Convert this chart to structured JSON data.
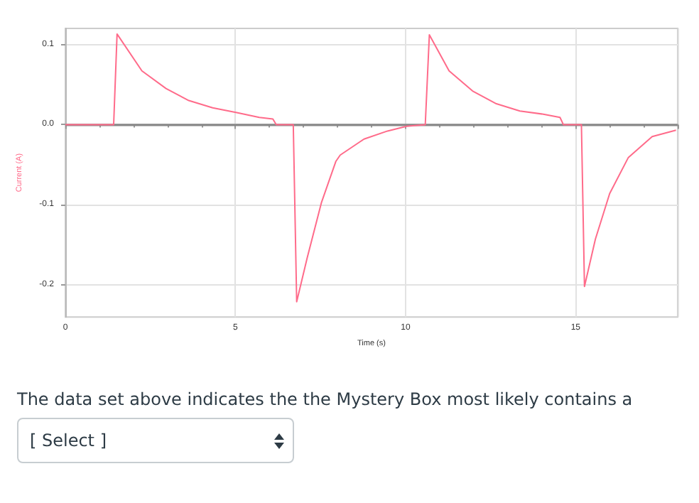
{
  "chart_data": {
    "type": "line",
    "xlabel": "Time (s)",
    "ylabel": "Current (A)",
    "x": [
      0,
      1.42,
      1.52,
      2.25,
      2.96,
      3.63,
      4.33,
      5.04,
      5.7,
      6.1,
      6.2,
      6.7,
      6.8,
      7.11,
      7.53,
      7.95,
      8.08,
      8.78,
      9.47,
      10.03,
      10.58,
      10.7,
      11.28,
      11.97,
      12.67,
      13.36,
      14.05,
      14.54,
      14.64,
      15.17,
      15.26,
      15.58,
      16.0,
      16.55,
      17.25,
      17.95
    ],
    "series": [
      {
        "color": "#ff6b8a",
        "values": [
          0,
          0,
          0.113,
          0.067,
          0.045,
          0.03,
          0.021,
          0.015,
          0.009,
          0.007,
          0,
          0,
          -0.221,
          -0.166,
          -0.097,
          -0.046,
          -0.038,
          -0.018,
          -0.008,
          -0.002,
          0,
          0.112,
          0.067,
          0.042,
          0.026,
          0.017,
          0.013,
          0.009,
          0,
          0,
          -0.202,
          -0.143,
          -0.086,
          -0.041,
          -0.015,
          -0.007
        ]
      }
    ],
    "xlim": [
      0,
      18
    ],
    "xticks": [
      0,
      5,
      10,
      15
    ],
    "ylim": [
      -0.24,
      0.12
    ],
    "yticks": [
      0.1,
      {
        "value": 0,
        "label": "0.0"
      },
      -0.1,
      -0.2
    ],
    "ref_lines": [
      {
        "axis": "y",
        "value": 0,
        "color": "#888888"
      }
    ],
    "grid": true,
    "marker": "none",
    "line_style": "solid",
    "annotations": [
      "The data set above indicates the the Mystery Box most likely contains a",
      "[ Select ]"
    ]
  }
}
